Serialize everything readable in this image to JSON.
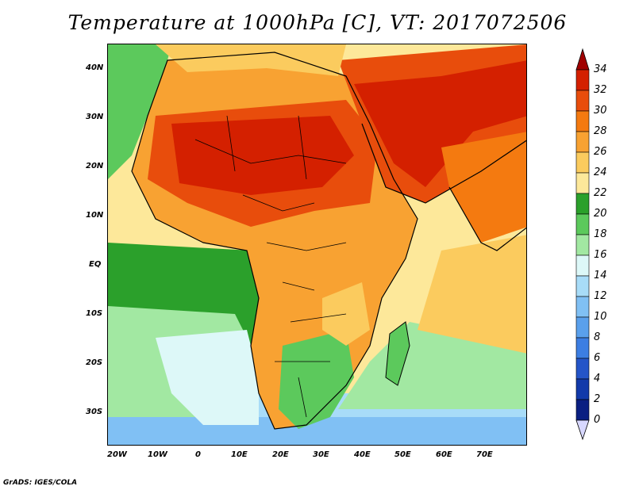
{
  "title": "Temperature at 1000hPa [C], VT: 2017072506",
  "credit": "GrADS: IGES/COLA",
  "lat_ticks": [
    "40N",
    "30N",
    "20N",
    "10N",
    "EQ",
    "10S",
    "20S",
    "30S"
  ],
  "lon_ticks": [
    "20W",
    "10W",
    "0",
    "10E",
    "20E",
    "30E",
    "40E",
    "50E",
    "60E",
    "70E"
  ],
  "colorbar": {
    "labels": [
      "34",
      "32",
      "30",
      "28",
      "26",
      "24",
      "22",
      "20",
      "18",
      "16",
      "14",
      "12",
      "10",
      "8",
      "6",
      "4",
      "2",
      "0"
    ],
    "colors": [
      "#a00000",
      "#d42000",
      "#e84d0c",
      "#f47a10",
      "#f8a232",
      "#fbcb5e",
      "#fde89a",
      "#2ba02b",
      "#5cc95c",
      "#a2e8a2",
      "#ddf8f8",
      "#a8dcf8",
      "#80c0f4",
      "#5aa0ec",
      "#3c7ee2",
      "#2455c8",
      "#123aaa",
      "#0a1f82",
      "#d8d8ff"
    ]
  },
  "map_colors": {
    "ocean_cool": "#7ab8ef",
    "ocean_mild": "#5cc95c",
    "ocean_warm": "#fde89a",
    "hot": "#d42000",
    "very_hot": "#e84d0c",
    "warm": "#f8a232",
    "mild_land": "#fbcb5e"
  }
}
